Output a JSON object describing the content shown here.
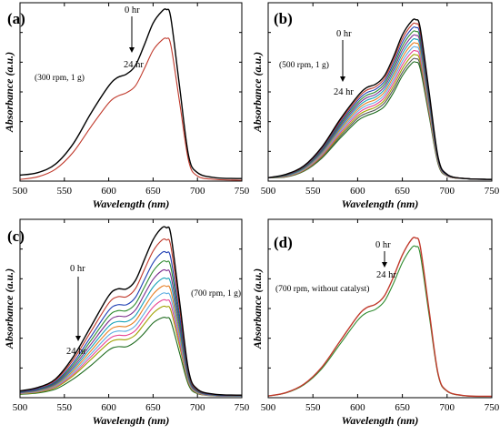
{
  "figure": {
    "panels_label": [
      "(a)",
      "(b)",
      "(c)",
      "(d)"
    ]
  },
  "chart_data": [
    {
      "type": "line",
      "panel_label": "(a)",
      "condition": "(300 rpm, 1 g)",
      "time_start": "0 hr",
      "time_end": "24 hr",
      "xlabel": "Wavelength (nm)",
      "ylabel": "Absorbance (a.u.)",
      "xlim": [
        500,
        750
      ],
      "xticks": [
        500,
        550,
        600,
        650,
        700,
        750
      ],
      "ylim": [
        0,
        1.05
      ],
      "y_tick_labels_shown": false,
      "grid": false,
      "x": [
        500,
        520,
        540,
        560,
        580,
        600,
        610,
        620,
        630,
        640,
        650,
        660,
        665,
        670,
        680,
        690,
        700,
        720,
        750
      ],
      "series": [
        {
          "color": "#000000",
          "values": [
            0.035,
            0.05,
            0.1,
            0.22,
            0.4,
            0.56,
            0.61,
            0.63,
            0.68,
            0.8,
            0.93,
            1.0,
            1.01,
            0.96,
            0.55,
            0.15,
            0.05,
            0.02,
            0.015
          ]
        },
        {
          "color": "#c0392b",
          "values": [
            0.01,
            0.025,
            0.07,
            0.17,
            0.32,
            0.46,
            0.5,
            0.52,
            0.56,
            0.66,
            0.77,
            0.83,
            0.84,
            0.8,
            0.46,
            0.12,
            0.03,
            0.01,
            0.005
          ]
        }
      ]
    },
    {
      "type": "line",
      "panel_label": "(b)",
      "condition": "(500 rpm, 1 g)",
      "time_start": "0 hr",
      "time_end": "24 hr",
      "xlabel": "Wavelength (nm)",
      "ylabel": "Absorbance (a.u.)",
      "xlim": [
        500,
        750
      ],
      "xticks": [
        500,
        550,
        600,
        650,
        700,
        750
      ],
      "ylim": [
        0,
        1.05
      ],
      "y_tick_labels_shown": false,
      "grid": false,
      "x": [
        500,
        520,
        540,
        560,
        580,
        600,
        610,
        620,
        630,
        640,
        650,
        660,
        665,
        670,
        680,
        690,
        700,
        720,
        750
      ],
      "series": [
        {
          "color": "#000000",
          "values": [
            0.02,
            0.04,
            0.09,
            0.2,
            0.36,
            0.5,
            0.55,
            0.57,
            0.62,
            0.73,
            0.86,
            0.94,
            0.95,
            0.9,
            0.52,
            0.14,
            0.04,
            0.015,
            0.01
          ]
        },
        {
          "color": "#c0392b",
          "values": [
            0.02,
            0.038,
            0.087,
            0.194,
            0.35,
            0.487,
            0.535,
            0.555,
            0.604,
            0.711,
            0.838,
            0.917,
            0.927,
            0.878,
            0.507,
            0.137,
            0.039,
            0.015,
            0.01
          ]
        },
        {
          "color": "#1f3fb4",
          "values": [
            0.02,
            0.037,
            0.084,
            0.188,
            0.34,
            0.474,
            0.52,
            0.54,
            0.588,
            0.692,
            0.816,
            0.894,
            0.904,
            0.856,
            0.494,
            0.133,
            0.038,
            0.015,
            0.01
          ]
        },
        {
          "color": "#2e8b2e",
          "values": [
            0.02,
            0.035,
            0.081,
            0.182,
            0.33,
            0.461,
            0.505,
            0.525,
            0.572,
            0.673,
            0.794,
            0.871,
            0.881,
            0.834,
            0.481,
            0.13,
            0.037,
            0.015,
            0.01
          ]
        },
        {
          "color": "#7b2d8e",
          "values": [
            0.02,
            0.034,
            0.078,
            0.176,
            0.32,
            0.448,
            0.49,
            0.51,
            0.556,
            0.654,
            0.772,
            0.848,
            0.858,
            0.812,
            0.468,
            0.126,
            0.036,
            0.015,
            0.01
          ]
        },
        {
          "color": "#17a2b8",
          "values": [
            0.02,
            0.032,
            0.075,
            0.17,
            0.31,
            0.435,
            0.475,
            0.495,
            0.54,
            0.635,
            0.75,
            0.825,
            0.835,
            0.79,
            0.455,
            0.123,
            0.035,
            0.015,
            0.01
          ]
        },
        {
          "color": "#e67e22",
          "values": [
            0.02,
            0.031,
            0.072,
            0.164,
            0.3,
            0.422,
            0.46,
            0.48,
            0.524,
            0.616,
            0.728,
            0.802,
            0.812,
            0.768,
            0.442,
            0.119,
            0.034,
            0.015,
            0.01
          ]
        },
        {
          "color": "#5dade2",
          "values": [
            0.02,
            0.03,
            0.069,
            0.158,
            0.29,
            0.409,
            0.445,
            0.465,
            0.508,
            0.597,
            0.706,
            0.779,
            0.789,
            0.746,
            0.429,
            0.116,
            0.033,
            0.015,
            0.01
          ]
        },
        {
          "color": "#e84393",
          "values": [
            0.02,
            0.028,
            0.066,
            0.152,
            0.28,
            0.396,
            0.43,
            0.45,
            0.492,
            0.578,
            0.684,
            0.756,
            0.766,
            0.724,
            0.416,
            0.112,
            0.032,
            0.015,
            0.01
          ]
        },
        {
          "color": "#a0a000",
          "values": [
            0.02,
            0.027,
            0.063,
            0.146,
            0.27,
            0.383,
            0.415,
            0.435,
            0.476,
            0.559,
            0.662,
            0.733,
            0.743,
            0.702,
            0.403,
            0.109,
            0.031,
            0.015,
            0.01
          ]
        },
        {
          "color": "#555555",
          "values": [
            0.02,
            0.025,
            0.06,
            0.14,
            0.26,
            0.37,
            0.4,
            0.42,
            0.46,
            0.54,
            0.64,
            0.71,
            0.72,
            0.68,
            0.39,
            0.105,
            0.03,
            0.015,
            0.01
          ]
        },
        {
          "color": "#1e6b1e",
          "values": [
            0.02,
            0.024,
            0.058,
            0.135,
            0.25,
            0.355,
            0.385,
            0.405,
            0.44,
            0.52,
            0.62,
            0.69,
            0.7,
            0.66,
            0.38,
            0.1,
            0.03,
            0.015,
            0.01
          ]
        }
      ]
    },
    {
      "type": "line",
      "panel_label": "(c)",
      "condition": "(700 rpm, 1 g)",
      "time_start": "0 hr",
      "time_end": "24 hr",
      "xlabel": "Wavelength (nm)",
      "ylabel": "Absorbance (a.u.)",
      "xlim": [
        500,
        750
      ],
      "xticks": [
        500,
        550,
        600,
        650,
        700,
        750
      ],
      "ylim": [
        0,
        1.05
      ],
      "y_tick_labels_shown": false,
      "grid": false,
      "x": [
        500,
        520,
        540,
        560,
        580,
        600,
        610,
        620,
        630,
        640,
        650,
        660,
        665,
        670,
        680,
        690,
        700,
        720,
        750
      ],
      "series": [
        {
          "color": "#000000",
          "values": [
            0.04,
            0.06,
            0.11,
            0.24,
            0.42,
            0.6,
            0.64,
            0.64,
            0.69,
            0.81,
            0.93,
            1.0,
            1.0,
            0.96,
            0.56,
            0.16,
            0.05,
            0.02,
            0.015
          ]
        },
        {
          "color": "#c0392b",
          "values": [
            0.038,
            0.057,
            0.103,
            0.223,
            0.39,
            0.556,
            0.594,
            0.594,
            0.641,
            0.752,
            0.863,
            0.928,
            0.928,
            0.891,
            0.52,
            0.148,
            0.046,
            0.019,
            0.014
          ]
        },
        {
          "color": "#1f3fb4",
          "values": [
            0.035,
            0.052,
            0.095,
            0.206,
            0.36,
            0.513,
            0.547,
            0.547,
            0.59,
            0.692,
            0.794,
            0.854,
            0.854,
            0.82,
            0.478,
            0.137,
            0.043,
            0.017,
            0.013
          ]
        },
        {
          "color": "#2e8b2e",
          "values": [
            0.033,
            0.049,
            0.089,
            0.193,
            0.337,
            0.48,
            0.512,
            0.512,
            0.552,
            0.648,
            0.744,
            0.8,
            0.8,
            0.768,
            0.448,
            0.128,
            0.04,
            0.016,
            0.012
          ]
        },
        {
          "color": "#7b2d8e",
          "values": [
            0.031,
            0.046,
            0.083,
            0.18,
            0.315,
            0.449,
            0.479,
            0.479,
            0.516,
            0.606,
            0.696,
            0.748,
            0.748,
            0.718,
            0.419,
            0.12,
            0.037,
            0.015,
            0.011
          ]
        },
        {
          "color": "#17a2b8",
          "values": [
            0.029,
            0.043,
            0.078,
            0.169,
            0.295,
            0.42,
            0.448,
            0.448,
            0.483,
            0.567,
            0.651,
            0.7,
            0.7,
            0.672,
            0.392,
            0.112,
            0.035,
            0.014,
            0.01
          ]
        },
        {
          "color": "#e67e22",
          "values": [
            0.027,
            0.04,
            0.073,
            0.158,
            0.276,
            0.393,
            0.419,
            0.419,
            0.452,
            0.531,
            0.609,
            0.655,
            0.655,
            0.629,
            0.367,
            0.105,
            0.033,
            0.013,
            0.01
          ]
        },
        {
          "color": "#5dade2",
          "values": [
            0.025,
            0.037,
            0.068,
            0.148,
            0.258,
            0.368,
            0.392,
            0.392,
            0.423,
            0.496,
            0.57,
            0.613,
            0.613,
            0.588,
            0.343,
            0.098,
            0.031,
            0.012,
            0.009
          ]
        },
        {
          "color": "#e84393",
          "values": [
            0.024,
            0.035,
            0.064,
            0.138,
            0.241,
            0.344,
            0.367,
            0.367,
            0.395,
            0.464,
            0.533,
            0.573,
            0.573,
            0.55,
            0.321,
            0.092,
            0.029,
            0.011,
            0.009
          ]
        },
        {
          "color": "#a0a000",
          "values": [
            0.022,
            0.032,
            0.059,
            0.129,
            0.225,
            0.321,
            0.342,
            0.342,
            0.369,
            0.433,
            0.497,
            0.535,
            0.535,
            0.514,
            0.299,
            0.086,
            0.027,
            0.011,
            0.008
          ]
        },
        {
          "color": "#1e6b1e",
          "values": [
            0.02,
            0.028,
            0.05,
            0.11,
            0.19,
            0.28,
            0.3,
            0.3,
            0.33,
            0.38,
            0.44,
            0.47,
            0.47,
            0.45,
            0.26,
            0.075,
            0.024,
            0.01,
            0.008
          ]
        }
      ]
    },
    {
      "type": "line",
      "panel_label": "(d)",
      "condition": "(700 rpm, without catalyst)",
      "time_start": "0 hr",
      "time_end": "24 hr",
      "xlabel": "Wavelength (nm)",
      "ylabel": "Absorbance (a.u.)",
      "xlim": [
        500,
        750
      ],
      "xticks": [
        500,
        550,
        600,
        650,
        700,
        750
      ],
      "ylim": [
        0,
        1.05
      ],
      "y_tick_labels_shown": false,
      "grid": false,
      "x": [
        500,
        520,
        540,
        560,
        580,
        600,
        610,
        620,
        630,
        640,
        650,
        660,
        665,
        670,
        680,
        690,
        700,
        720,
        750
      ],
      "series": [
        {
          "color": "#c0392b",
          "values": [
            0.01,
            0.03,
            0.08,
            0.18,
            0.33,
            0.48,
            0.53,
            0.55,
            0.6,
            0.71,
            0.84,
            0.93,
            0.94,
            0.89,
            0.51,
            0.14,
            0.04,
            0.012,
            0.008
          ]
        },
        {
          "color": "#2e8b2e",
          "values": [
            0.01,
            0.028,
            0.076,
            0.171,
            0.313,
            0.455,
            0.5,
            0.52,
            0.568,
            0.672,
            0.795,
            0.88,
            0.89,
            0.843,
            0.483,
            0.133,
            0.038,
            0.011,
            0.008
          ]
        }
      ]
    }
  ]
}
